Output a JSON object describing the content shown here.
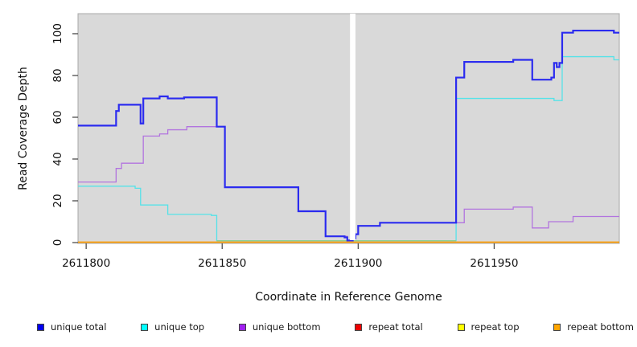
{
  "chart_data": {
    "type": "line",
    "subtype": "step-coverage",
    "title": "",
    "xlabel": "Coordinate in Reference Genome",
    "ylabel": "Read Coverage Depth",
    "xlim": [
      2611797,
      2611996
    ],
    "ylim": [
      0,
      109.6
    ],
    "x_ticks": [
      2611800,
      2611850,
      2611900,
      2611950
    ],
    "y_ticks": [
      0,
      20,
      40,
      60,
      80,
      100
    ],
    "grid": false,
    "panel_bg": "#D9D9D9",
    "panel_border": "#A8A8A8",
    "tick_color": "#4D4D4D",
    "legend_position": "bottom",
    "masked_region": {
      "start": 2611897,
      "end": 2611899,
      "color": "#FFFFFF",
      "note": "white vertical gap band over plot"
    },
    "legend": [
      {
        "label": "unique total",
        "color": "#0000EE"
      },
      {
        "label": "unique top",
        "color": "#00FFFF"
      },
      {
        "label": "unique bottom",
        "color": "#A020F0"
      },
      {
        "label": "repeat total",
        "color": "#EE0000"
      },
      {
        "label": "repeat top",
        "color": "#FFFF00"
      },
      {
        "label": "repeat bottom",
        "color": "#FFA500"
      }
    ],
    "series": [
      {
        "name": "repeat total",
        "line_color": "#EE0000",
        "line_width": 1.3,
        "steps": [
          [
            2611797,
            0.2
          ]
        ]
      },
      {
        "name": "repeat top",
        "line_color": "#FFFF00",
        "line_width": 1.3,
        "steps": [
          [
            2611797,
            0.2
          ]
        ]
      },
      {
        "name": "repeat bottom",
        "line_color": "#FF9D00",
        "line_width": 1.5,
        "steps": [
          [
            2611797,
            0.2
          ]
        ]
      },
      {
        "name": "unique top",
        "line_color": "#55E2E8",
        "line_width": 1.3,
        "steps": [
          [
            2611797,
            27
          ],
          [
            2611818,
            26
          ],
          [
            2611820,
            18
          ],
          [
            2611830,
            13.5
          ],
          [
            2611846,
            13
          ],
          [
            2611848,
            0.9
          ],
          [
            2611936,
            69
          ],
          [
            2611972,
            68
          ],
          [
            2611975,
            89
          ],
          [
            2611994,
            87.5
          ]
        ]
      },
      {
        "name": "unique top + repeat overlap (blended)",
        "line_color": "#8CCE96",
        "line_width": 1.4,
        "steps": [
          [
            2611848,
            0.9
          ]
        ],
        "end": 2611936
      },
      {
        "name": "unique bottom",
        "line_color": "#B274DF",
        "line_width": 1.3,
        "steps": [
          [
            2611797,
            29
          ],
          [
            2611811,
            35.5
          ],
          [
            2611813,
            38
          ],
          [
            2611821,
            51
          ],
          [
            2611827,
            52
          ],
          [
            2611830,
            54
          ],
          [
            2611837,
            55.5
          ],
          [
            2611851,
            26.5
          ],
          [
            2611878,
            15
          ],
          [
            2611888,
            3
          ],
          [
            2611896,
            1
          ],
          [
            2611898,
            2
          ],
          [
            2611899,
            4
          ],
          [
            2611900,
            8
          ],
          [
            2611908,
            9.5
          ],
          [
            2611939,
            16
          ],
          [
            2611957,
            17
          ],
          [
            2611964,
            7
          ],
          [
            2611970,
            10
          ],
          [
            2611979,
            12.5
          ]
        ]
      },
      {
        "name": "unique total",
        "line_color": "#2B2BEF",
        "line_width": 2.2,
        "steps": [
          [
            2611797,
            56
          ],
          [
            2611811,
            63
          ],
          [
            2611812,
            66
          ],
          [
            2611820,
            57
          ],
          [
            2611821,
            69
          ],
          [
            2611827,
            70
          ],
          [
            2611830,
            69
          ],
          [
            2611836,
            69.5
          ],
          [
            2611848,
            55.5
          ],
          [
            2611851,
            26.5
          ],
          [
            2611878,
            15
          ],
          [
            2611888,
            3
          ],
          [
            2611895,
            2.5
          ],
          [
            2611896,
            1
          ],
          [
            2611898,
            2
          ],
          [
            2611899,
            4
          ],
          [
            2611900,
            8
          ],
          [
            2611908,
            9.5
          ],
          [
            2611936,
            79
          ],
          [
            2611939,
            86.5
          ],
          [
            2611957,
            87.5
          ],
          [
            2611964,
            78
          ],
          [
            2611971,
            79
          ],
          [
            2611972,
            86
          ],
          [
            2611973,
            84
          ],
          [
            2611974,
            86
          ],
          [
            2611975,
            100.5
          ],
          [
            2611979,
            101.5
          ],
          [
            2611994,
            100.5
          ]
        ]
      }
    ]
  }
}
